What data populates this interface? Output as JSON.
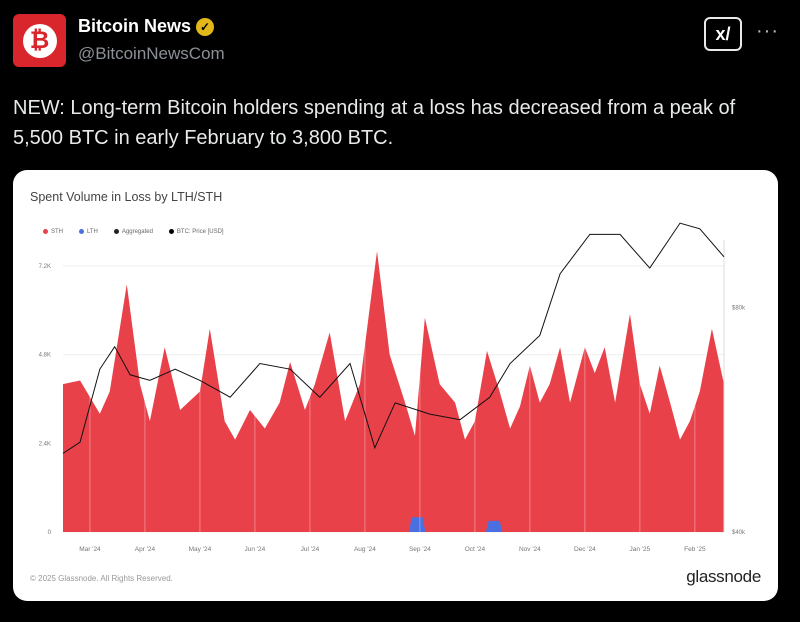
{
  "post": {
    "name": "Bitcoin News",
    "verified_icon": "verified-badge",
    "handle": "@BitcoinNewsCom",
    "avatar_icon": "bitcoin-icon",
    "grok_label": "x/",
    "more_label": "···",
    "text": "NEW: Long-term Bitcoin holders spending at a loss has decreased from a peak of 5,500 BTC in early February to 3,800 BTC."
  },
  "card": {
    "copyright": "© 2025 Glassnode. All Rights Reserved.",
    "brand": "glassnode"
  },
  "colors": {
    "sth": "#e8414a",
    "lth": "#4a6fe0",
    "price": "#111111"
  },
  "chart_data": {
    "type": "area",
    "title": "Spent Volume in Loss by LTH/STH",
    "legend": [
      "STH",
      "LTH",
      "Aggregated",
      "BTC: Price [USD]"
    ],
    "x_tick_labels": [
      "Mar '24",
      "Apr '24",
      "May '24",
      "Jun '24",
      "Jul '24",
      "Aug '24",
      "Sep '24",
      "Oct '24",
      "Nov '24",
      "Dec '24",
      "Jan '25",
      "Feb '25"
    ],
    "y_ticks": [
      {
        "v": 0,
        "label": "0"
      },
      {
        "v": 2400,
        "label": "2.4K"
      },
      {
        "v": 4800,
        "label": "4.8K"
      },
      {
        "v": 7200,
        "label": "7.2K"
      }
    ],
    "y2_ticks": [
      {
        "v": 40000,
        "label": "$40k"
      },
      {
        "v": 80000,
        "label": "$80k"
      }
    ],
    "xlim": [
      -0.49,
      11.53
    ],
    "ylim": [
      0,
      7900
    ],
    "y2lim": [
      40000,
      92000
    ],
    "sth": [
      [
        -0.49,
        4000
      ],
      [
        -0.18,
        4100
      ],
      [
        0.18,
        3200
      ],
      [
        0.36,
        3800
      ],
      [
        0.67,
        6700
      ],
      [
        0.91,
        4000
      ],
      [
        1.09,
        3000
      ],
      [
        1.36,
        5000
      ],
      [
        1.64,
        3300
      ],
      [
        2,
        3800
      ],
      [
        2.18,
        5500
      ],
      [
        2.45,
        3000
      ],
      [
        2.64,
        2500
      ],
      [
        2.91,
        3300
      ],
      [
        3.18,
        2800
      ],
      [
        3.45,
        3500
      ],
      [
        3.64,
        4600
      ],
      [
        3.91,
        3300
      ],
      [
        4.09,
        4000
      ],
      [
        4.36,
        5400
      ],
      [
        4.64,
        3000
      ],
      [
        4.91,
        4000
      ],
      [
        5.22,
        7600
      ],
      [
        5.45,
        4800
      ],
      [
        5.73,
        3500
      ],
      [
        5.91,
        2600
      ],
      [
        6.09,
        5800
      ],
      [
        6.36,
        4000
      ],
      [
        6.64,
        3500
      ],
      [
        6.82,
        2500
      ],
      [
        7,
        3000
      ],
      [
        7.22,
        4900
      ],
      [
        7.45,
        3800
      ],
      [
        7.64,
        2800
      ],
      [
        7.82,
        3400
      ],
      [
        8,
        4500
      ],
      [
        8.18,
        3500
      ],
      [
        8.36,
        4000
      ],
      [
        8.55,
        5000
      ],
      [
        8.73,
        3500
      ],
      [
        9,
        5000
      ],
      [
        9.18,
        4300
      ],
      [
        9.36,
        5000
      ],
      [
        9.55,
        3500
      ],
      [
        9.82,
        5900
      ],
      [
        10,
        4000
      ],
      [
        10.18,
        3200
      ],
      [
        10.36,
        4500
      ],
      [
        10.55,
        3500
      ],
      [
        10.73,
        2500
      ],
      [
        10.91,
        3000
      ],
      [
        11.09,
        3800
      ],
      [
        11.31,
        5500
      ],
      [
        11.53,
        4000
      ]
    ],
    "lth": [
      [
        5.8,
        0
      ],
      [
        5.85,
        400
      ],
      [
        6.05,
        400
      ],
      [
        6.1,
        0
      ],
      [
        7.2,
        0
      ],
      [
        7.25,
        300
      ],
      [
        7.45,
        300
      ],
      [
        7.5,
        0
      ]
    ],
    "price": [
      [
        -0.49,
        54000
      ],
      [
        -0.18,
        56000
      ],
      [
        0.18,
        69000
      ],
      [
        0.45,
        73000
      ],
      [
        0.73,
        68000
      ],
      [
        1.09,
        67000
      ],
      [
        1.55,
        69000
      ],
      [
        2,
        67000
      ],
      [
        2.55,
        64000
      ],
      [
        3.09,
        70000
      ],
      [
        3.64,
        69000
      ],
      [
        4.18,
        64000
      ],
      [
        4.73,
        70000
      ],
      [
        5.18,
        55000
      ],
      [
        5.55,
        63000
      ],
      [
        6.18,
        61000
      ],
      [
        6.73,
        60000
      ],
      [
        7.27,
        64000
      ],
      [
        7.64,
        70000
      ],
      [
        8.18,
        75000
      ],
      [
        8.55,
        86000
      ],
      [
        9.09,
        93000
      ],
      [
        9.64,
        93000
      ],
      [
        10.18,
        87000
      ],
      [
        10.73,
        95000
      ],
      [
        11.09,
        94000
      ],
      [
        11.53,
        89000
      ]
    ]
  }
}
